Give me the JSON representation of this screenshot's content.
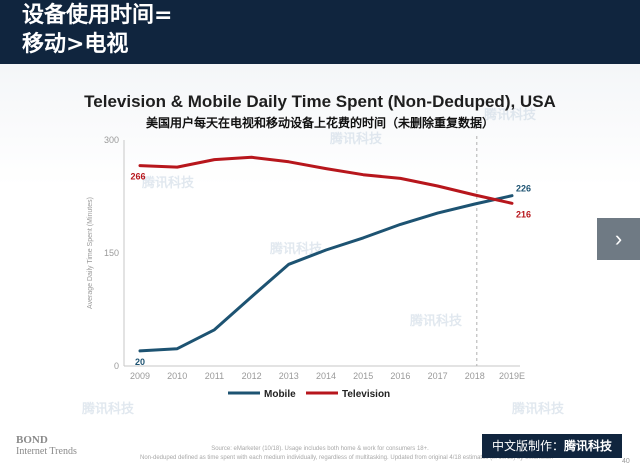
{
  "header": {
    "line1": "设备使用时间=",
    "line2": "移动>电视"
  },
  "watermark_text": "腾讯科技",
  "nav": {
    "next_icon": "chevron-right-icon",
    "glyph": "›"
  },
  "footer": {
    "brand_line1": "BOND",
    "brand_line2": "Internet Trends",
    "source_line1": "Source: eMarketer (10/18). Usage includes both home & work for consumers 18+.",
    "source_line2": "Non-deduped defined as time spent with each medium individually, regardless of multitasking. Updated from original 4/18 estimates (in 10/18) by eMarketer.",
    "credit_prefix": "中文版制作：",
    "credit_brand": "腾讯科技",
    "page_number": "40"
  },
  "chart_data": {
    "type": "line",
    "title": "Television & Mobile Daily Time Spent (Non-Deduped), USA",
    "subtitle": "美国用户每天在电视和移动设备上花费的时间（未删除重复数据）",
    "ylabel": "Average Daily Time Spent (Minutes)",
    "xlabel": "",
    "categories": [
      "2009",
      "2010",
      "2011",
      "2012",
      "2013",
      "2014",
      "2015",
      "2016",
      "2017",
      "2018",
      "2019E"
    ],
    "yticks": [
      "0",
      "150",
      "300"
    ],
    "ylim": [
      0,
      300
    ],
    "grid": false,
    "legend_position": "bottom-center",
    "colors": {
      "mobile": "#1d5372",
      "television": "#b7161c"
    },
    "series": [
      {
        "name": "Mobile",
        "values": [
          20,
          23,
          48,
          92,
          135,
          154,
          170,
          188,
          203,
          215,
          226
        ]
      },
      {
        "name": "Television",
        "values": [
          266,
          264,
          274,
          277,
          271,
          262,
          254,
          249,
          239,
          227,
          216
        ]
      }
    ],
    "data_labels": {
      "mobile_start": "20",
      "mobile_end": "226",
      "tv_start": "266",
      "tv_end": "216"
    }
  }
}
